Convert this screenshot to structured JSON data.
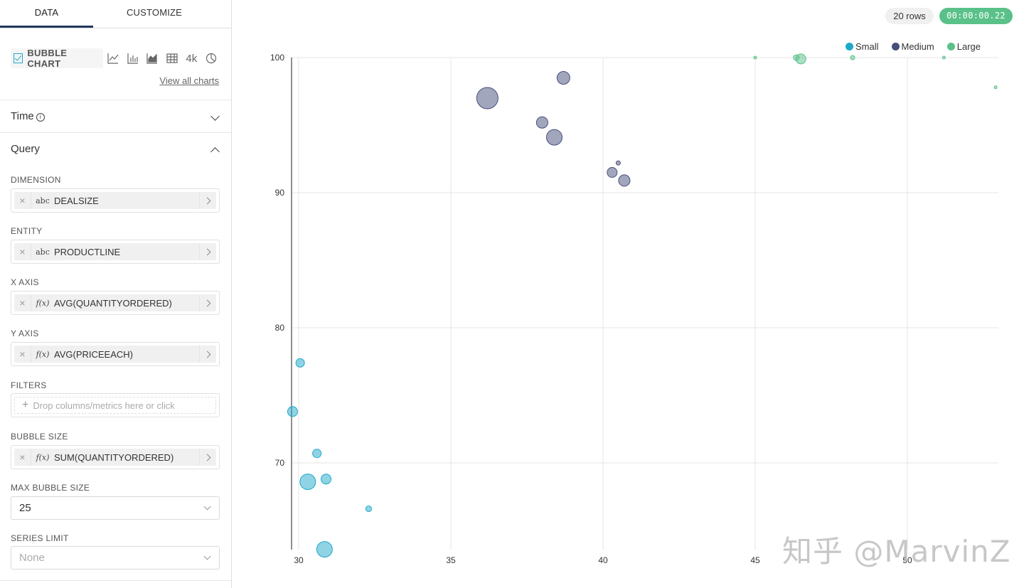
{
  "tabs": {
    "data": "DATA",
    "customize": "CUSTOMIZE"
  },
  "viz": {
    "selected": "BUBBLE CHART",
    "numberIcon": "4k",
    "viewAll": "View all charts",
    "icons": [
      "line-chart-icon",
      "bar-chart-icon",
      "area-chart-icon",
      "table-icon",
      "big-number-icon",
      "pie-chart-icon"
    ]
  },
  "sections": {
    "time": "Time",
    "query": "Query"
  },
  "controls": {
    "dimension": {
      "label": "DIMENSION",
      "type": "abc",
      "value": "DEALSIZE"
    },
    "entity": {
      "label": "ENTITY",
      "type": "abc",
      "value": "PRODUCTLINE"
    },
    "xaxis": {
      "label": "X AXIS",
      "type": "f(x)",
      "value": "AVG(QUANTITYORDERED)"
    },
    "yaxis": {
      "label": "Y AXIS",
      "type": "f(x)",
      "value": "AVG(PRICEEACH)"
    },
    "filters": {
      "label": "FILTERS",
      "placeholder": "Drop columns/metrics here or click"
    },
    "bubbleSize": {
      "label": "BUBBLE SIZE",
      "type": "f(x)",
      "value": "SUM(QUANTITYORDERED)"
    },
    "maxBubble": {
      "label": "MAX BUBBLE SIZE",
      "value": "25"
    },
    "seriesLimit": {
      "label": "SERIES LIMIT",
      "placeholder": "None"
    }
  },
  "status": {
    "rows": "20 rows",
    "timer": "00:00:00.22"
  },
  "watermark": "知乎 @MarvinZ",
  "chart_data": {
    "type": "scatter",
    "title": "",
    "xlabel": "",
    "ylabel": "",
    "xlim": [
      29.75,
      52.9
    ],
    "ylim": [
      63.5,
      100
    ],
    "xticks": [
      30,
      35,
      40,
      45,
      50
    ],
    "yticks": [
      70,
      80,
      90,
      100
    ],
    "grid": true,
    "legend_position": "top-right",
    "series": [
      {
        "name": "Small",
        "color": "#1fa8c9",
        "points": [
          {
            "x": 30.05,
            "y": 77.4,
            "size": 6
          },
          {
            "x": 29.8,
            "y": 73.8,
            "size": 7
          },
          {
            "x": 30.6,
            "y": 70.7,
            "size": 6
          },
          {
            "x": 30.3,
            "y": 68.6,
            "size": 11
          },
          {
            "x": 30.9,
            "y": 68.8,
            "size": 7
          },
          {
            "x": 32.3,
            "y": 66.6,
            "size": 4
          },
          {
            "x": 30.85,
            "y": 63.6,
            "size": 11
          }
        ]
      },
      {
        "name": "Medium",
        "color": "#454e7c",
        "points": [
          {
            "x": 38.7,
            "y": 98.5,
            "size": 9
          },
          {
            "x": 36.2,
            "y": 97.0,
            "size": 15
          },
          {
            "x": 38.0,
            "y": 95.2,
            "size": 8
          },
          {
            "x": 38.4,
            "y": 94.1,
            "size": 11
          },
          {
            "x": 40.5,
            "y": 92.2,
            "size": 3
          },
          {
            "x": 40.3,
            "y": 91.5,
            "size": 7
          },
          {
            "x": 40.7,
            "y": 90.9,
            "size": 8
          }
        ]
      },
      {
        "name": "Large",
        "color": "#5ac189",
        "points": [
          {
            "x": 45.0,
            "y": 100.0,
            "size": 2
          },
          {
            "x": 46.35,
            "y": 100.0,
            "size": 4
          },
          {
            "x": 46.5,
            "y": 99.9,
            "size": 7
          },
          {
            "x": 48.2,
            "y": 100.0,
            "size": 3
          },
          {
            "x": 51.2,
            "y": 100.0,
            "size": 2
          },
          {
            "x": 52.9,
            "y": 97.8,
            "size": 2
          }
        ]
      }
    ]
  }
}
